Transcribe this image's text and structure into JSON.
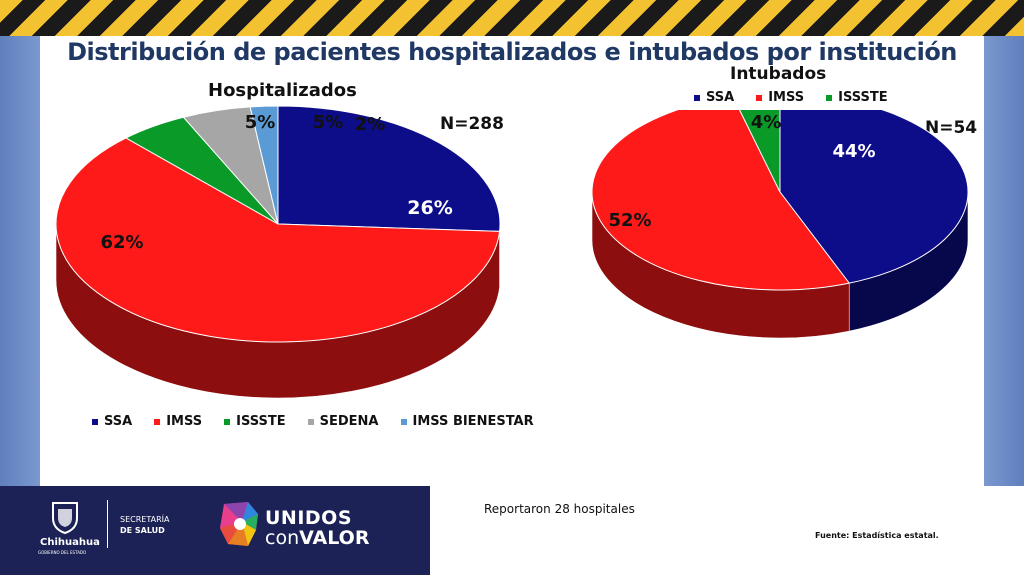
{
  "title": "Distribución de pacientes hospitalizados e intubados por institución",
  "chart_data": [
    {
      "type": "pie",
      "title": "Hospitalizados",
      "n_label": "N=288",
      "categories": [
        "SSA",
        "IMSS",
        "ISSSTE",
        "SEDENA",
        "IMSS BIENESTAR"
      ],
      "values": [
        26,
        62,
        5,
        5,
        2
      ],
      "labels": [
        "26%",
        "62%",
        "5%",
        "5%",
        "2%"
      ],
      "colors": [
        "#0d0d8a",
        "#ff1a1a",
        "#0a9a28",
        "#a6a6a6",
        "#5b9bd5"
      ],
      "legend_position": "bottom"
    },
    {
      "type": "pie",
      "title": "Intubados",
      "n_label": "N=54",
      "categories": [
        "SSA",
        "IMSS",
        "ISSSTE"
      ],
      "values": [
        44,
        52,
        4
      ],
      "labels": [
        "44%",
        "52%",
        "4%"
      ],
      "colors": [
        "#0d0d8a",
        "#ff1a1a",
        "#0a9a28"
      ],
      "legend_position": "top"
    }
  ],
  "footer": {
    "state_name": "Chihuahua",
    "state_sub": "GOBIERNO DEL ESTADO",
    "secretaria_line1": "SECRETARÍA",
    "secretaria_line2": "DE SALUD",
    "slogan_line1": "UNIDOS",
    "slogan_line2a": "con",
    "slogan_line2b": "VALOR",
    "hospitals_note": "Reportaron 28 hospitales",
    "source_note": "Fuente: Estadística estatal."
  }
}
